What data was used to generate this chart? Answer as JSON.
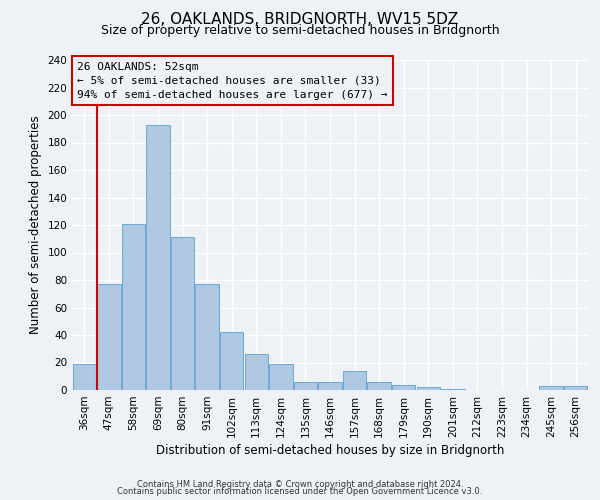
{
  "title": "26, OAKLANDS, BRIDGNORTH, WV15 5DZ",
  "subtitle": "Size of property relative to semi-detached houses in Bridgnorth",
  "xlabel": "Distribution of semi-detached houses by size in Bridgnorth",
  "ylabel": "Number of semi-detached properties",
  "categories": [
    "36sqm",
    "47sqm",
    "58sqm",
    "69sqm",
    "80sqm",
    "91sqm",
    "102sqm",
    "113sqm",
    "124sqm",
    "135sqm",
    "146sqm",
    "157sqm",
    "168sqm",
    "179sqm",
    "190sqm",
    "201sqm",
    "212sqm",
    "223sqm",
    "234sqm",
    "245sqm",
    "256sqm"
  ],
  "values": [
    19,
    77,
    121,
    193,
    111,
    77,
    42,
    26,
    19,
    6,
    6,
    14,
    6,
    4,
    2,
    1,
    0,
    0,
    0,
    3,
    3
  ],
  "bar_color": "#adc8e0",
  "bar_edge_color": "#6aaad4",
  "ylim": [
    0,
    240
  ],
  "yticks": [
    0,
    20,
    40,
    60,
    80,
    100,
    120,
    140,
    160,
    180,
    200,
    220,
    240
  ],
  "property_line_x": 1.0,
  "property_label": "26 OAKLANDS: 52sqm",
  "annotation_line1": "← 5% of semi-detached houses are smaller (33)",
  "annotation_line2": "94% of semi-detached houses are larger (677) →",
  "box_color": "#cc0000",
  "footer1": "Contains HM Land Registry data © Crown copyright and database right 2024.",
  "footer2": "Contains public sector information licensed under the Open Government Licence v3.0.",
  "bg_color": "#eef2f7",
  "title_fontsize": 11,
  "subtitle_fontsize": 9,
  "axis_label_fontsize": 8.5,
  "tick_fontsize": 7.5,
  "footer_fontsize": 6
}
